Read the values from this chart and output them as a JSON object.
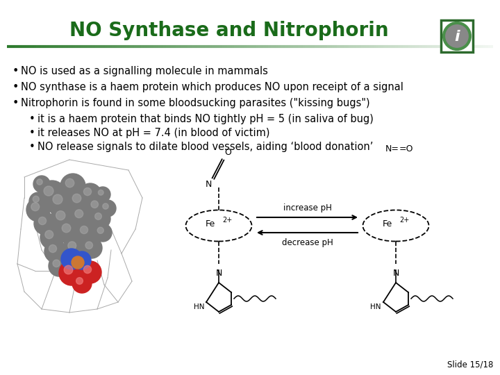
{
  "title": "NO Synthase and Nitrophorin",
  "title_color": "#1a6b1a",
  "title_fontsize": 20,
  "bg_color": "#ffffff",
  "header_line_color": "#2d7a2d",
  "bullet_fontsize": 10.5,
  "bullets": [
    "NO is used as a signalling molecule in mammals",
    "NO synthase is a haem protein which produces NO upon receipt of a signal",
    "Nitrophorin is found in some bloodsucking parasites (\"kissing bugs\")"
  ],
  "sub_bullets": [
    "it is a haem protein that binds NO tightly pH = 5 (in saliva of bug)",
    "it releases NO at pH = 7.4 (in blood of victim)",
    "NO release signals to dilate blood vessels, aiding ‘blood donation’"
  ],
  "slide_number": "Slide 15/18",
  "icon_color": "#4a8f4a",
  "icon_border_color": "#2d6a2d"
}
